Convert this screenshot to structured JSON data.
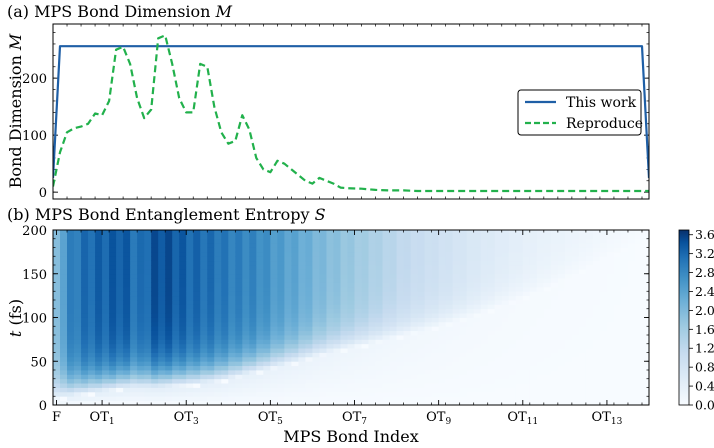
{
  "chart_data": [
    {
      "type": "line",
      "title_prefix": "(a) MPS Bond Dimension",
      "title_symbol": "M",
      "ylabel_text": "Bond Dimension",
      "ylabel_symbol": "M",
      "xlabel": "",
      "ylim": [
        -12,
        295
      ],
      "xlim": [
        0,
        84
      ],
      "yticks": [
        0,
        100,
        200
      ],
      "legend_placement": "center-right",
      "series": [
        {
          "name": "This work",
          "color": "#1f5fa6",
          "style": "solid",
          "x": [
            0,
            1,
            84,
            85
          ],
          "y": [
            25,
            256,
            256,
            25
          ]
        },
        {
          "name": "Reproduce",
          "color": "#22b14c",
          "style": "dashed",
          "x": [
            0,
            1,
            2,
            3,
            4,
            5,
            6,
            7,
            8,
            9,
            10,
            11,
            12,
            13,
            14,
            15,
            16,
            17,
            18,
            19,
            20,
            21,
            22,
            23,
            24,
            25,
            26,
            27,
            28,
            29,
            30,
            31,
            32,
            33,
            34,
            35,
            36,
            37,
            38,
            39,
            40,
            41,
            42,
            44,
            46,
            48,
            50,
            52,
            54,
            56,
            58,
            60,
            62,
            64,
            66,
            68,
            70,
            72,
            74,
            76,
            78,
            80,
            82,
            84,
            85
          ],
          "y": [
            10,
            70,
            105,
            112,
            115,
            120,
            138,
            135,
            160,
            250,
            255,
            225,
            165,
            130,
            145,
            270,
            275,
            225,
            165,
            140,
            140,
            225,
            220,
            150,
            105,
            85,
            90,
            135,
            110,
            60,
            40,
            35,
            55,
            50,
            40,
            30,
            20,
            15,
            25,
            20,
            15,
            8,
            7,
            6,
            4,
            3,
            3,
            2,
            2,
            2,
            2,
            2,
            2,
            2,
            2,
            2,
            2,
            2,
            2,
            2,
            2,
            2,
            2,
            2,
            2
          ]
        }
      ]
    },
    {
      "type": "heatmap",
      "title_prefix": "(b) MPS Bond Entanglement Entropy",
      "title_symbol": "S",
      "ylabel_symbol": "t",
      "ylabel_unit": "(fs)",
      "xlabel": "MPS Bond Index",
      "ylim": [
        0,
        200
      ],
      "yticks": [
        0,
        50,
        100,
        150,
        200
      ],
      "xticks": [
        {
          "x": 0.5,
          "label": "F",
          "sub": ""
        },
        {
          "x": 7,
          "label": "OT",
          "sub": "1"
        },
        {
          "x": 19,
          "label": "OT",
          "sub": "3"
        },
        {
          "x": 31,
          "label": "OT",
          "sub": "5"
        },
        {
          "x": 43,
          "label": "OT",
          "sub": "7"
        },
        {
          "x": 55,
          "label": "OT",
          "sub": "9"
        },
        {
          "x": 67,
          "label": "OT",
          "sub": "11"
        },
        {
          "x": 79,
          "label": "OT",
          "sub": "13"
        }
      ],
      "colorbar": {
        "min": 0.0,
        "max": 3.7,
        "ticks": [
          "0.0",
          "0.4",
          "0.8",
          "1.2",
          "1.6",
          "2.0",
          "2.4",
          "2.8",
          "3.2",
          "3.6"
        ],
        "low_color": "#f7fbff",
        "high_color": "#08306b"
      },
      "profile": {
        "bond_positions": [
          0,
          2,
          5,
          8,
          10,
          12,
          15,
          17,
          20,
          23,
          26,
          29,
          32,
          35,
          38,
          42,
          46,
          50,
          55,
          60,
          65,
          70,
          75,
          80,
          85
        ],
        "max_entropy": [
          1.6,
          2.9,
          3.3,
          3.4,
          3.5,
          3.1,
          3.6,
          3.5,
          3.3,
          3.2,
          3.0,
          2.9,
          2.6,
          2.4,
          2.1,
          1.8,
          1.5,
          1.2,
          0.95,
          0.7,
          0.5,
          0.35,
          0.25,
          0.15,
          0.05
        ],
        "onset_time": [
          5,
          8,
          12,
          15,
          18,
          18,
          18,
          20,
          22,
          25,
          30,
          36,
          42,
          48,
          55,
          63,
          70,
          78,
          88,
          100,
          115,
          130,
          150,
          170,
          190
        ]
      }
    }
  ]
}
